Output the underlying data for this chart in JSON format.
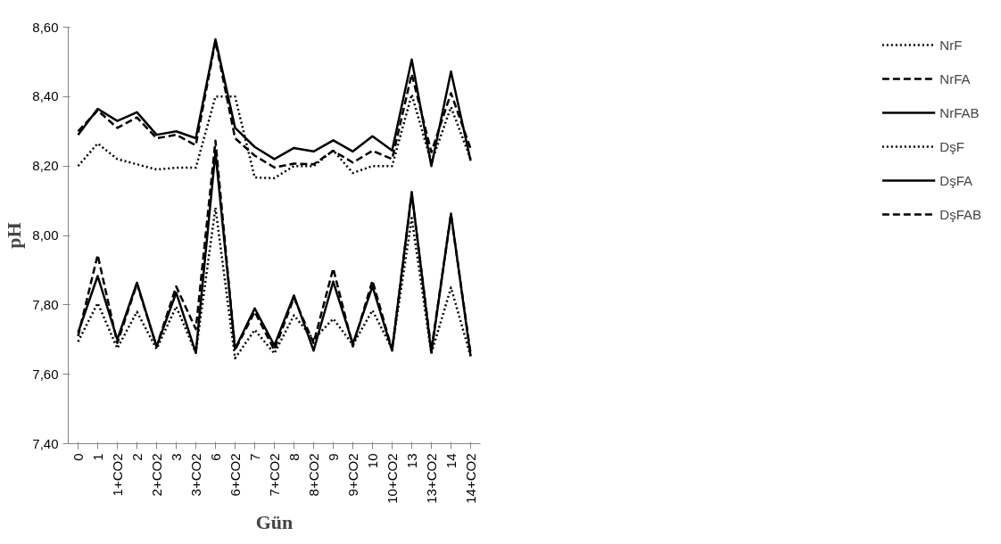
{
  "chart_data": {
    "type": "line",
    "xlabel": "Gün",
    "ylabel": "pH",
    "categories": [
      "0",
      "1",
      "1+CO2",
      "2",
      "2+CO2",
      "3",
      "3+CO2",
      "6",
      "6+CO2",
      "7",
      "7+CO2",
      "8",
      "8+CO2",
      "9",
      "9+CO2",
      "10",
      "10+CO2",
      "13",
      "13+CO2",
      "14",
      "14+CO2"
    ],
    "ylim": [
      7.4,
      8.6
    ],
    "yticks": [
      {
        "value": 7.4,
        "label": "7,40"
      },
      {
        "value": 7.6,
        "label": "7,60"
      },
      {
        "value": 7.8,
        "label": "7,80"
      },
      {
        "value": 8.0,
        "label": "8,00"
      },
      {
        "value": 8.2,
        "label": "8,20"
      },
      {
        "value": 8.4,
        "label": "8,40"
      },
      {
        "value": 8.6,
        "label": "8,60"
      }
    ],
    "grid": false,
    "legend": "right",
    "marker": "none",
    "series": [
      {
        "name": "NrF",
        "color": "#000000",
        "line_style": "dotted",
        "values": [
          8.2,
          8.265,
          8.22,
          8.205,
          8.19,
          8.195,
          8.195,
          8.4,
          8.4,
          8.167,
          8.165,
          8.2,
          8.2,
          8.245,
          8.18,
          8.2,
          8.2,
          8.406,
          8.21,
          8.37,
          8.22
        ]
      },
      {
        "name": "NrFA",
        "color": "#000000",
        "line_style": "dashed",
        "values": [
          8.3,
          8.36,
          8.31,
          8.34,
          8.28,
          8.29,
          8.26,
          8.56,
          8.28,
          8.23,
          8.196,
          8.207,
          8.205,
          8.244,
          8.21,
          8.244,
          8.22,
          8.465,
          8.24,
          8.41,
          8.25
        ]
      },
      {
        "name": "NrFAB",
        "color": "#000000",
        "line_style": "solid",
        "values": [
          8.29,
          8.365,
          8.33,
          8.355,
          8.29,
          8.3,
          8.28,
          8.565,
          8.31,
          8.255,
          8.22,
          8.252,
          8.242,
          8.274,
          8.242,
          8.286,
          8.245,
          8.507,
          8.2,
          8.472,
          8.215
        ]
      },
      {
        "name": "DşF",
        "color": "#000000",
        "line_style": "dotted",
        "values": [
          7.694,
          7.805,
          7.675,
          7.78,
          7.673,
          7.795,
          7.662,
          8.08,
          7.646,
          7.728,
          7.66,
          7.77,
          7.7,
          7.76,
          7.685,
          7.784,
          7.673,
          8.05,
          7.66,
          7.85,
          7.652
        ]
      },
      {
        "name": "DşFA",
        "color": "#000000",
        "line_style": "solid",
        "values": [
          7.72,
          7.883,
          7.7,
          7.864,
          7.68,
          7.835,
          7.662,
          8.24,
          7.673,
          7.79,
          7.683,
          7.827,
          7.668,
          7.867,
          7.688,
          7.853,
          7.668,
          8.125,
          7.662,
          8.063,
          7.652
        ]
      },
      {
        "name": "DşFAB",
        "color": "#000000",
        "line_style": "dashed",
        "values": [
          7.71,
          7.944,
          7.69,
          7.86,
          7.68,
          7.853,
          7.73,
          8.273,
          7.67,
          7.78,
          7.67,
          7.82,
          7.69,
          7.905,
          7.68,
          7.87,
          7.67,
          8.12,
          7.67,
          8.06,
          7.66
        ]
      }
    ]
  }
}
